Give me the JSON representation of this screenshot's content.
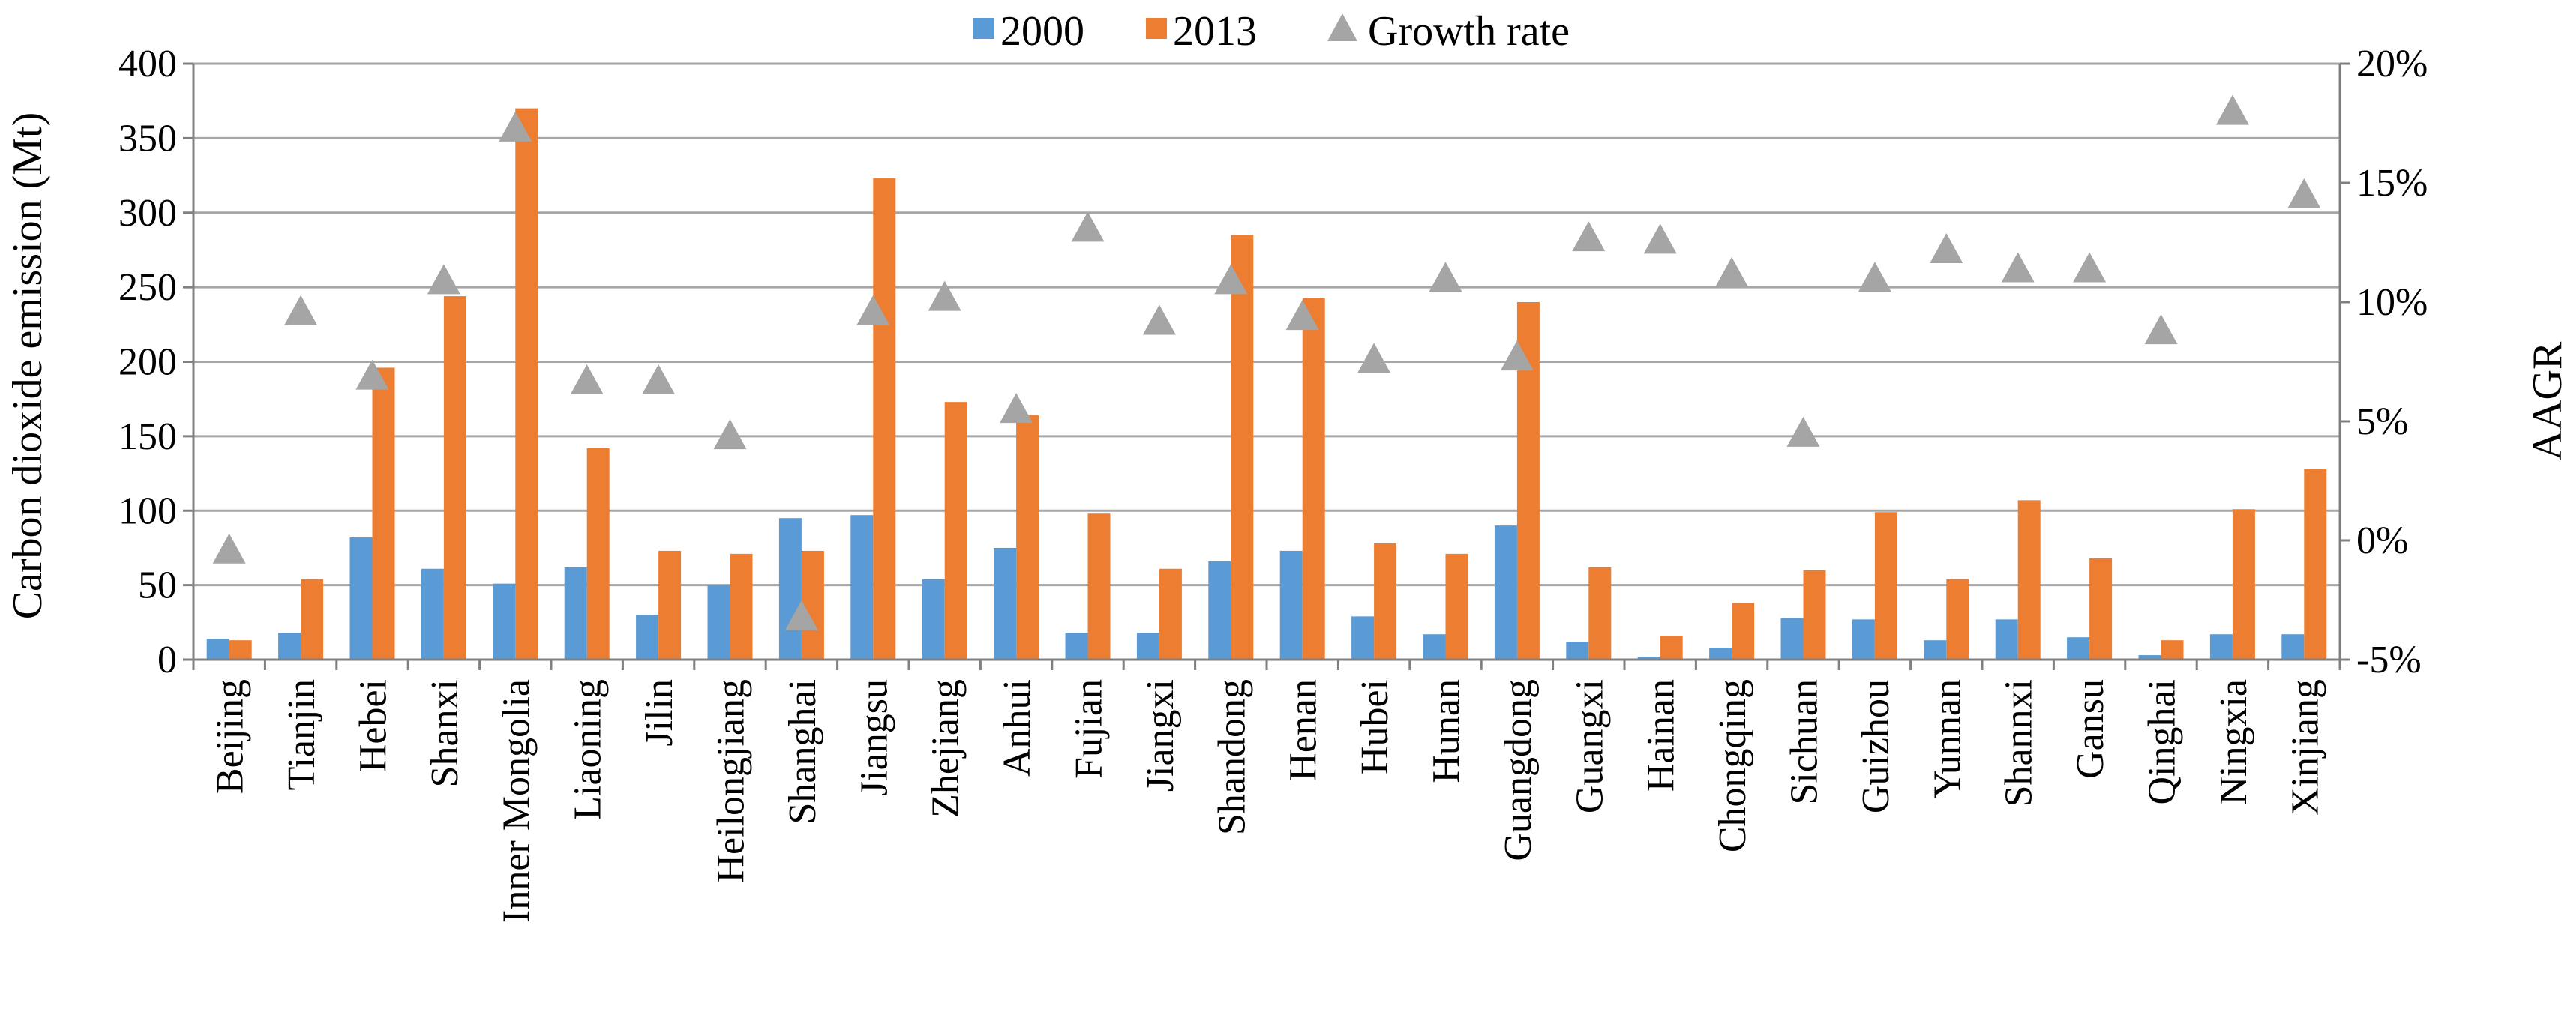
{
  "chart_data": {
    "type": "bar",
    "categories": [
      "Beijing",
      "Tianjin",
      "Hebei",
      "Shanxi",
      "Inner Mongolia",
      "Liaoning",
      "Jilin",
      "Heilongjiang",
      "Shanghai",
      "Jiangsu",
      "Zhejiang",
      "Anhui",
      "Fujian",
      "Jiangxi",
      "Shandong",
      "Henan",
      "Hubei",
      "Hunan",
      "Guangdong",
      "Guangxi",
      "Hainan",
      "Chongqing",
      "Sichuan",
      "Guizhou",
      "Yunnan",
      "Shannxi",
      "Gansu",
      "Qinghai",
      "Ningxia",
      "Xinjiang"
    ],
    "series": [
      {
        "name": "2000",
        "axis": "left",
        "color": "#5B9BD5",
        "values": [
          14,
          18,
          82,
          61,
          51,
          62,
          30,
          50,
          95,
          97,
          54,
          75,
          18,
          18,
          66,
          73,
          29,
          17,
          90,
          12,
          2,
          8,
          28,
          27,
          13,
          27,
          15,
          3,
          17,
          17
        ]
      },
      {
        "name": "2013",
        "axis": "left",
        "color": "#ED7D31",
        "values": [
          13,
          54,
          196,
          244,
          370,
          142,
          73,
          71,
          73,
          323,
          173,
          164,
          98,
          61,
          285,
          243,
          78,
          71,
          240,
          62,
          16,
          38,
          60,
          99,
          54,
          107,
          68,
          13,
          101,
          128
        ]
      },
      {
        "name": "Growth rate",
        "axis": "right",
        "color": "#A5A5A5",
        "marker": "triangle",
        "values": [
          -0.4,
          9.6,
          6.9,
          10.9,
          17.3,
          6.7,
          6.7,
          4.4,
          -3.2,
          9.6,
          10.2,
          5.5,
          13.1,
          9.2,
          10.9,
          9.4,
          7.6,
          11.0,
          7.7,
          12.7,
          12.6,
          11.2,
          4.5,
          11.0,
          12.2,
          11.4,
          11.4,
          8.8,
          18.0,
          14.5
        ]
      }
    ],
    "yAxisLeft": {
      "title": "Carbon dioxide emission (Mt)",
      "min": 0,
      "max": 400,
      "step": 50,
      "ticks": [
        "0",
        "50",
        "100",
        "150",
        "200",
        "250",
        "300",
        "350",
        "400"
      ]
    },
    "yAxisRight": {
      "title": "AAGR",
      "min": -5,
      "max": 20,
      "step": 5,
      "ticks": [
        "-5%",
        "0%",
        "5%",
        "10%",
        "15%",
        "20%"
      ]
    },
    "legend": {
      "position": "top",
      "items": [
        {
          "label": "2000",
          "shape": "square",
          "color": "#5B9BD5"
        },
        {
          "label": "2013",
          "shape": "square",
          "color": "#ED7D31"
        },
        {
          "label": "Growth rate",
          "shape": "triangle",
          "color": "#A5A5A5"
        }
      ]
    },
    "grid": true,
    "gridColor": "#A6A6A6",
    "axisColor": "#808080"
  }
}
